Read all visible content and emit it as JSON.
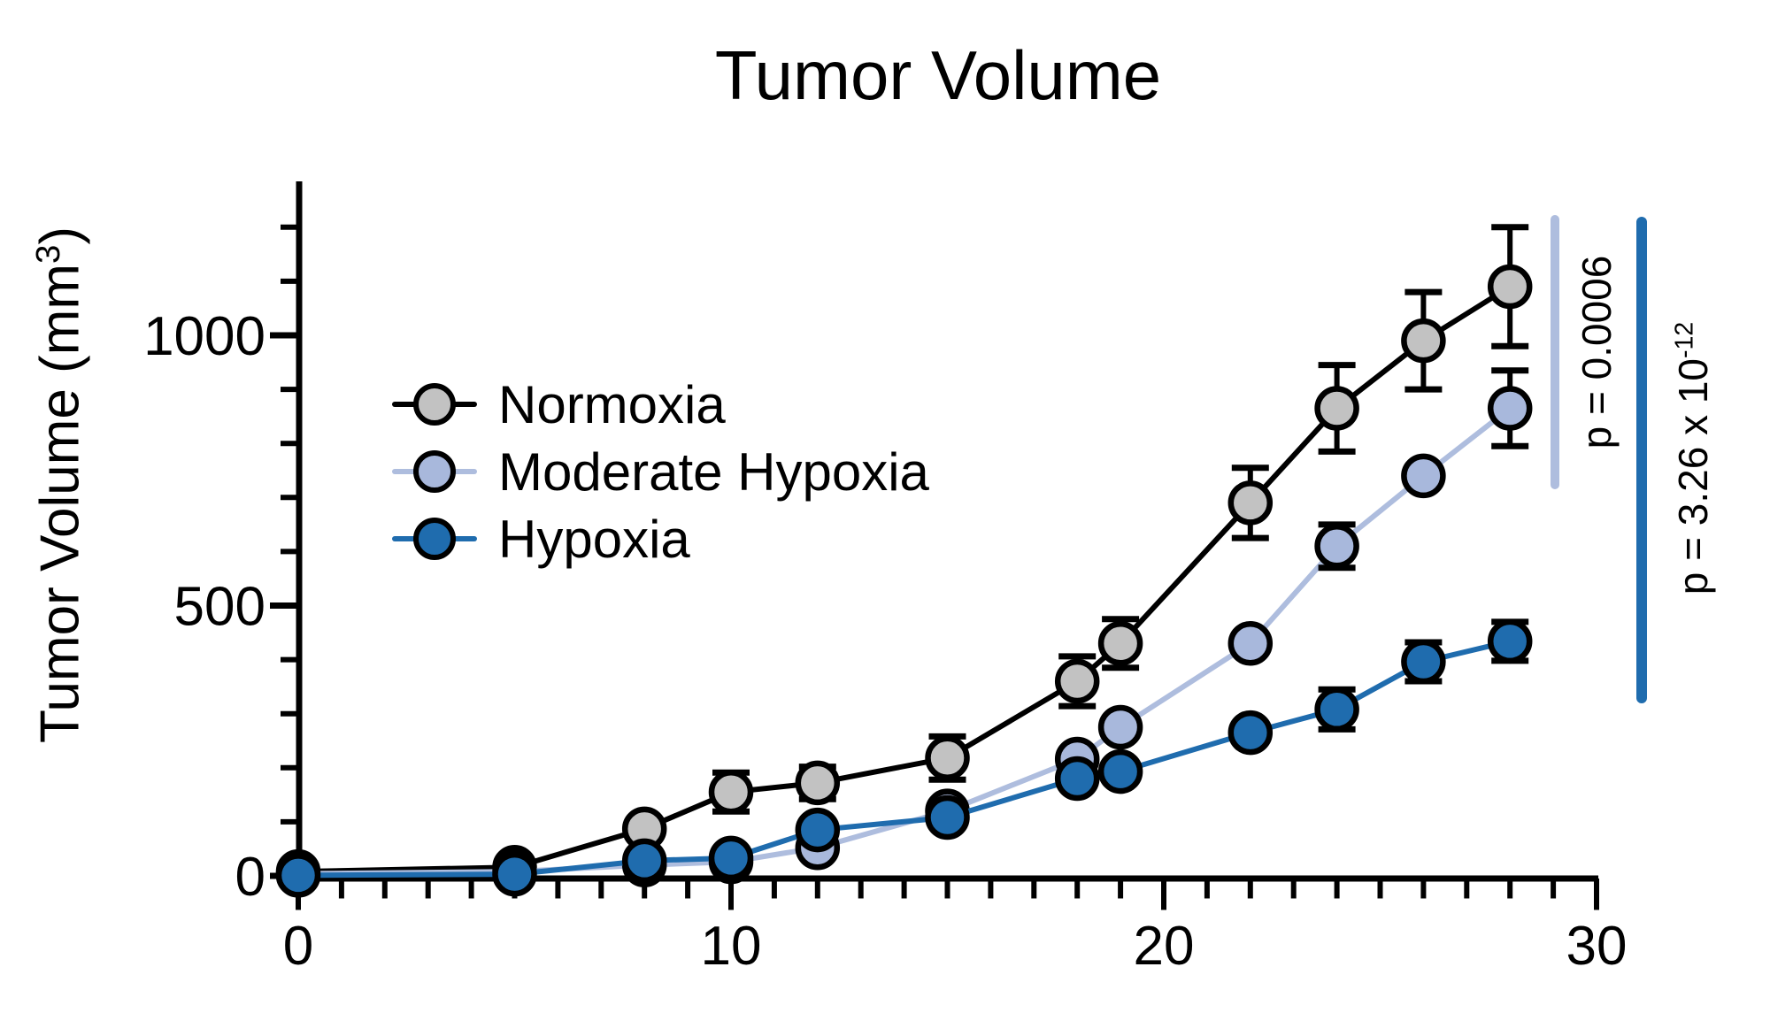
{
  "title": "Tumor Volume",
  "y_axis": {
    "label_pre": "Tumor Volume (mm",
    "label_sup": "3",
    "label_post": ")",
    "tick_values": [
      0,
      500,
      1000
    ],
    "tick_labels": [
      "0",
      "500",
      "1000"
    ],
    "minor_step": 100,
    "minor_max": 1200
  },
  "x_axis": {
    "tick_values": [
      0,
      10,
      20,
      30
    ],
    "tick_labels": [
      "0",
      "10",
      "20",
      "30"
    ],
    "minor_step": 1,
    "min": 0,
    "max": 30
  },
  "legend": {
    "items": [
      {
        "label": "Normoxia",
        "marker_fill": "#c2c2c2",
        "line_color": "#000000"
      },
      {
        "label": "Moderate Hypoxia",
        "marker_fill": "#a8b8dc",
        "line_color": "#aebdde"
      },
      {
        "label": "Hypoxia",
        "marker_fill": "#1f6cae",
        "line_color": "#1f6cae"
      }
    ]
  },
  "annotations": [
    {
      "bar_color": "#aebdde",
      "base": "p = 0.0006",
      "exponent": ""
    },
    {
      "bar_color": "#1f6cae",
      "base": "p = 3.26 x 10",
      "exponent": "-12"
    }
  ],
  "chart_data": {
    "type": "line",
    "title": "Tumor Volume",
    "xlabel": "",
    "ylabel": "Tumor Volume (mm³)",
    "x": [
      0,
      5,
      8,
      10,
      12,
      15,
      18,
      19,
      22,
      24,
      26,
      28
    ],
    "xlim": [
      0,
      30
    ],
    "ylim": [
      0,
      1285
    ],
    "grid": false,
    "legend_position": "upper-left-inside",
    "series": [
      {
        "name": "Normoxia",
        "marker_fill": "#c2c2c2",
        "line_color": "#000000",
        "values": [
          8,
          16,
          87,
          155,
          172,
          218,
          360,
          430,
          690,
          865,
          990,
          1090
        ],
        "errors": [
          0,
          0,
          0,
          36,
          30,
          40,
          46,
          45,
          65,
          80,
          90,
          110
        ]
      },
      {
        "name": "Moderate Hypoxia",
        "marker_fill": "#a8b8dc",
        "line_color": "#aebdde",
        "values": [
          4,
          8,
          20,
          26,
          52,
          120,
          216,
          275,
          430,
          610,
          740,
          865
        ],
        "errors": [
          0,
          0,
          0,
          0,
          0,
          0,
          0,
          0,
          0,
          40,
          0,
          70
        ]
      },
      {
        "name": "Hypoxia",
        "marker_fill": "#1f6cae",
        "line_color": "#1f6cae",
        "values": [
          1,
          3,
          28,
          33,
          85,
          108,
          180,
          193,
          265,
          308,
          396,
          434
        ],
        "errors": [
          0,
          0,
          0,
          0,
          0,
          0,
          0,
          0,
          0,
          37,
          36,
          36
        ]
      }
    ]
  }
}
